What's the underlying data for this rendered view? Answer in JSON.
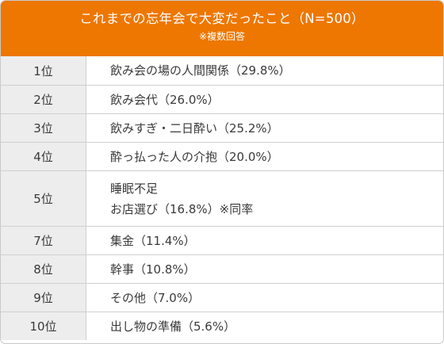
{
  "header": {
    "title": "これまでの忘年会で大変だったこと（N=500）",
    "note": "※複数回答"
  },
  "rows": [
    {
      "rank": "1位",
      "lines": [
        "飲み会の場の人間関係（29.8%）"
      ]
    },
    {
      "rank": "2位",
      "lines": [
        "飲み会代（26.0%）"
      ]
    },
    {
      "rank": "3位",
      "lines": [
        "飲みすぎ・二日酔い（25.2%）"
      ]
    },
    {
      "rank": "4位",
      "lines": [
        "酔っ払った人の介抱（20.0%）"
      ]
    },
    {
      "rank": "5位",
      "lines": [
        "睡眠不足",
        "お店選び（16.8%）※同率"
      ]
    },
    {
      "rank": "7位",
      "lines": [
        "集金（11.4%）"
      ]
    },
    {
      "rank": "8位",
      "lines": [
        "幹事（10.8%）"
      ]
    },
    {
      "rank": "9位",
      "lines": [
        "その他（7.0%）"
      ]
    },
    {
      "rank": "10位",
      "lines": [
        "出し物の準備（5.6%）"
      ]
    }
  ]
}
